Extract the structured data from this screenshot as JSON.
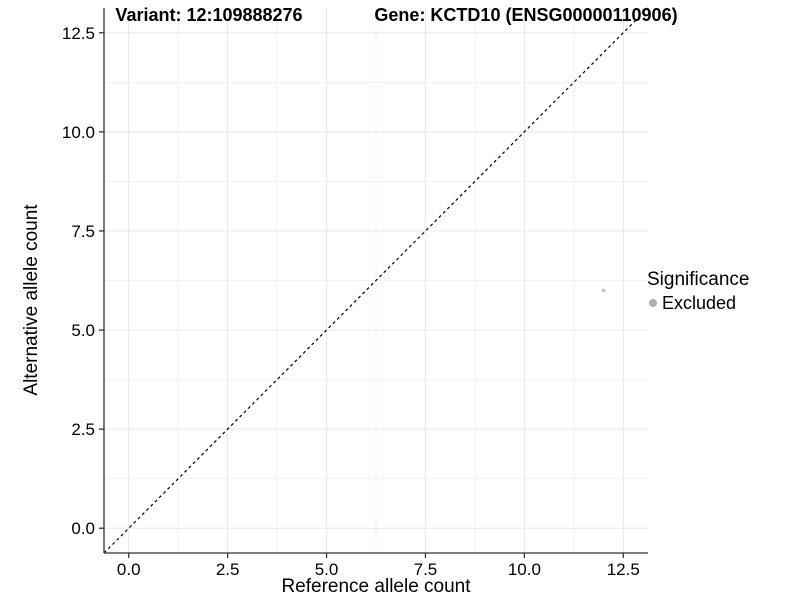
{
  "chart_data": {
    "type": "scatter",
    "title_left": "Variant: 12:109888276",
    "title_right": "Gene: KCTD10 (ENSG00000110906)",
    "xlabel": "Reference allele count",
    "ylabel": "Alternative allele count",
    "xlim": [
      -0.625,
      13.125
    ],
    "ylim": [
      -0.625,
      13.125
    ],
    "x_ticks": [
      0,
      2.5,
      5,
      7.5,
      10,
      12.5
    ],
    "x_tick_labels": [
      "0.0",
      "2.5",
      "5.0",
      "7.5",
      "10.0",
      "12.5"
    ],
    "y_ticks": [
      0,
      2.5,
      5,
      7.5,
      10,
      12.5
    ],
    "y_tick_labels": [
      "0.0",
      "2.5",
      "5.0",
      "7.5",
      "10.0",
      "12.5"
    ],
    "x_minor_ticks": [
      1.25,
      3.75,
      6.25,
      8.75,
      11.25
    ],
    "y_minor_ticks": [
      1.25,
      3.75,
      6.25,
      8.75,
      11.25
    ],
    "grid": true,
    "identity_line": {
      "style": "dashed",
      "slope": 1,
      "intercept": 0,
      "color": "#000000"
    },
    "points": [
      {
        "x": 12,
        "y": 6,
        "series": "Excluded",
        "color": "#c3c3c3"
      }
    ],
    "legend": {
      "title": "Significance",
      "position": "right",
      "items": [
        {
          "label": "Excluded",
          "color": "#aeaeae"
        }
      ]
    },
    "style": {
      "axis_color": "#333333",
      "grid_major_color": "#e8e8e8",
      "grid_minor_color": "#f2f2f2",
      "background": "#ffffff"
    }
  }
}
